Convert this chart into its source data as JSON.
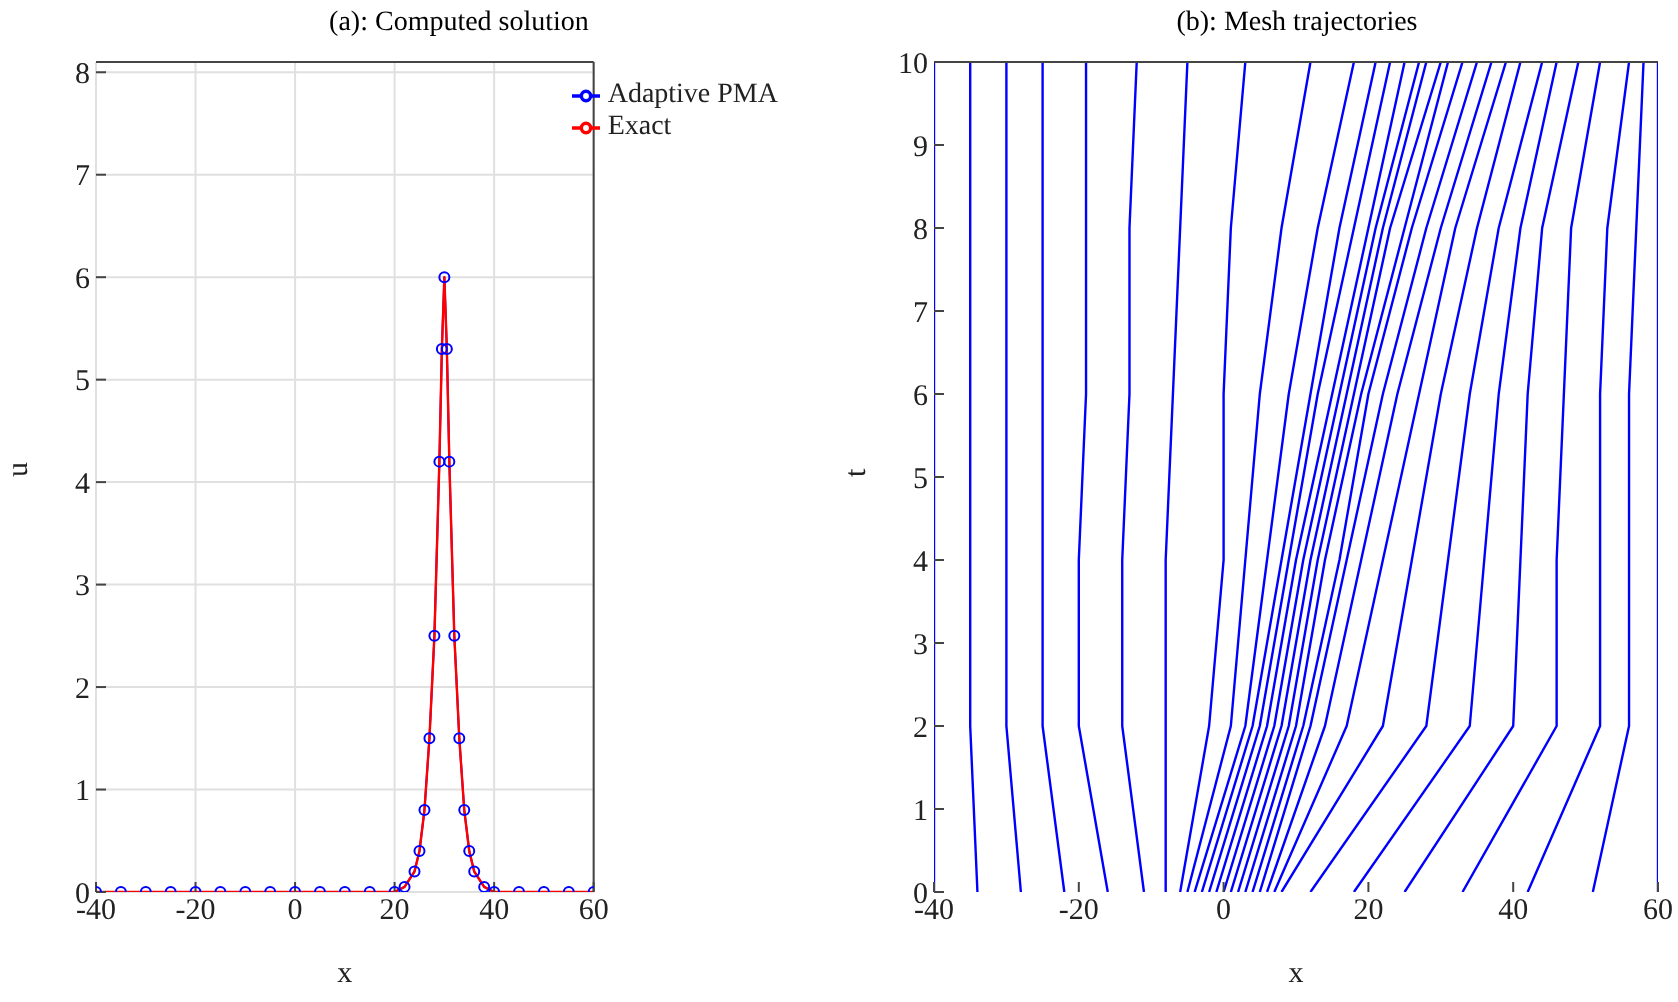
{
  "chart_data": [
    {
      "type": "line",
      "title": "(a): Computed solution",
      "xlabel": "x",
      "ylabel": "u",
      "xlim": [
        -40,
        60
      ],
      "xticks": [
        -40,
        -20,
        0,
        20,
        40,
        60
      ],
      "ylim": [
        0,
        8.1
      ],
      "yticks": [
        0,
        1,
        2,
        3,
        4,
        5,
        6,
        7,
        8
      ],
      "grid": true,
      "legend": "top right",
      "x": [
        -40,
        -35,
        -30,
        -25,
        -20,
        -15,
        -10,
        -5,
        0,
        5,
        10,
        15,
        20,
        22,
        24,
        25,
        26,
        27,
        28,
        29,
        29.5,
        30,
        30.5,
        31,
        32,
        33,
        34,
        35,
        36,
        38,
        40,
        45,
        50,
        55,
        60
      ],
      "series": [
        {
          "name": "Adaptive PMA",
          "color": "#0000ff",
          "marker": "circle",
          "values": [
            0,
            0,
            0,
            0,
            0,
            0,
            0,
            0,
            0,
            0,
            0,
            0,
            0,
            0.05,
            0.2,
            0.4,
            0.8,
            1.5,
            2.5,
            4.2,
            5.3,
            6,
            5.3,
            4.2,
            2.5,
            1.5,
            0.8,
            0.4,
            0.2,
            0.05,
            0,
            0,
            0,
            0,
            0
          ]
        },
        {
          "name": "Exact",
          "color": "#ff0000",
          "marker": "none",
          "values": [
            0,
            0,
            0,
            0,
            0,
            0,
            0,
            0,
            0,
            0,
            0,
            0,
            0,
            0.05,
            0.2,
            0.4,
            0.8,
            1.5,
            2.5,
            4.2,
            5.3,
            6,
            5.3,
            4.2,
            2.5,
            1.5,
            0.8,
            0.4,
            0.2,
            0.05,
            0,
            0,
            0,
            0,
            0
          ]
        }
      ]
    },
    {
      "type": "line",
      "title": "(b): Mesh trajectories",
      "xlabel": "x",
      "ylabel": "t",
      "xlim": [
        -40,
        60
      ],
      "xticks": [
        -40,
        -20,
        0,
        20,
        40,
        60
      ],
      "ylim": [
        0,
        10
      ],
      "yticks": [
        0,
        1,
        2,
        3,
        4,
        5,
        6,
        7,
        8,
        9,
        10
      ],
      "grid": false,
      "legend": false,
      "marker": "none",
      "series": [
        {
          "color": "#0000ff",
          "x": [
            -40,
            -40,
            -40,
            -40,
            -40,
            -40
          ],
          "values": [
            0,
            2,
            4,
            6,
            8,
            10
          ]
        },
        {
          "color": "#0000ff",
          "x": [
            -34,
            -35,
            -35,
            -35,
            -35,
            -35
          ],
          "values": [
            0,
            2,
            4,
            6,
            8,
            10
          ]
        },
        {
          "color": "#0000ff",
          "x": [
            -28,
            -30,
            -30,
            -30,
            -30,
            -30
          ],
          "values": [
            0,
            2,
            4,
            6,
            8,
            10
          ]
        },
        {
          "color": "#0000ff",
          "x": [
            -22,
            -25,
            -25,
            -25,
            -25,
            -25
          ],
          "values": [
            0,
            2,
            4,
            6,
            8,
            10
          ]
        },
        {
          "color": "#0000ff",
          "x": [
            -16,
            -20,
            -20,
            -19,
            -19,
            -19
          ],
          "values": [
            0,
            2,
            4,
            6,
            8,
            10
          ]
        },
        {
          "color": "#0000ff",
          "x": [
            -11,
            -14,
            -14,
            -13,
            -13,
            -12
          ],
          "values": [
            0,
            2,
            4,
            6,
            8,
            10
          ]
        },
        {
          "color": "#0000ff",
          "x": [
            -8,
            -8,
            -8,
            -7,
            -6,
            -5
          ],
          "values": [
            0,
            2,
            4,
            6,
            8,
            10
          ]
        },
        {
          "color": "#0000ff",
          "x": [
            -6,
            -2,
            0,
            0,
            1,
            3
          ],
          "values": [
            0,
            2,
            4,
            6,
            8,
            10
          ]
        },
        {
          "color": "#0000ff",
          "x": [
            -5,
            1,
            3,
            5,
            8,
            12
          ],
          "values": [
            0,
            2,
            4,
            6,
            8,
            10
          ]
        },
        {
          "color": "#0000ff",
          "x": [
            -4,
            3,
            6,
            9,
            13,
            18
          ],
          "values": [
            0,
            2,
            4,
            6,
            8,
            10
          ]
        },
        {
          "color": "#0000ff",
          "x": [
            -3,
            4,
            8,
            12,
            16,
            21
          ],
          "values": [
            0,
            2,
            4,
            6,
            8,
            10
          ]
        },
        {
          "color": "#0000ff",
          "x": [
            -2,
            5,
            9,
            13,
            18,
            23
          ],
          "values": [
            0,
            2,
            4,
            6,
            8,
            10
          ]
        },
        {
          "color": "#0000ff",
          "x": [
            -1,
            6,
            10,
            15,
            20,
            25
          ],
          "values": [
            0,
            2,
            4,
            6,
            8,
            10
          ]
        },
        {
          "color": "#0000ff",
          "x": [
            0,
            7,
            11,
            16,
            21,
            27
          ],
          "values": [
            0,
            2,
            4,
            6,
            8,
            10
          ]
        },
        {
          "color": "#0000ff",
          "x": [
            1,
            8,
            12,
            17,
            22,
            28
          ],
          "values": [
            0,
            2,
            4,
            6,
            8,
            10
          ]
        },
        {
          "color": "#0000ff",
          "x": [
            2,
            9,
            13,
            18,
            23,
            30
          ],
          "values": [
            0,
            2,
            4,
            6,
            8,
            10
          ]
        },
        {
          "color": "#0000ff",
          "x": [
            3,
            10,
            14,
            19,
            25,
            31
          ],
          "values": [
            0,
            2,
            4,
            6,
            8,
            10
          ]
        },
        {
          "color": "#0000ff",
          "x": [
            4,
            11,
            16,
            20,
            26,
            33
          ],
          "values": [
            0,
            2,
            4,
            6,
            8,
            10
          ]
        },
        {
          "color": "#0000ff",
          "x": [
            5,
            12,
            17,
            22,
            28,
            35
          ],
          "values": [
            0,
            2,
            4,
            6,
            8,
            10
          ]
        },
        {
          "color": "#0000ff",
          "x": [
            6,
            14,
            19,
            24,
            30,
            37
          ],
          "values": [
            0,
            2,
            4,
            6,
            8,
            10
          ]
        },
        {
          "color": "#0000ff",
          "x": [
            7,
            17,
            22,
            27,
            32,
            39
          ],
          "values": [
            0,
            2,
            4,
            6,
            8,
            10
          ]
        },
        {
          "color": "#0000ff",
          "x": [
            8,
            22,
            26,
            30,
            35,
            41
          ],
          "values": [
            0,
            2,
            4,
            6,
            8,
            10
          ]
        },
        {
          "color": "#0000ff",
          "x": [
            12,
            28,
            31,
            34,
            38,
            44
          ],
          "values": [
            0,
            2,
            4,
            6,
            8,
            10
          ]
        },
        {
          "color": "#0000ff",
          "x": [
            18,
            34,
            36,
            38,
            41,
            46
          ],
          "values": [
            0,
            2,
            4,
            6,
            8,
            10
          ]
        },
        {
          "color": "#0000ff",
          "x": [
            25,
            40,
            41,
            42,
            44,
            49
          ],
          "values": [
            0,
            2,
            4,
            6,
            8,
            10
          ]
        },
        {
          "color": "#0000ff",
          "x": [
            33,
            46,
            46,
            47,
            48,
            52
          ],
          "values": [
            0,
            2,
            4,
            6,
            8,
            10
          ]
        },
        {
          "color": "#0000ff",
          "x": [
            42,
            52,
            52,
            52,
            53,
            56
          ],
          "values": [
            0,
            2,
            4,
            6,
            8,
            10
          ]
        },
        {
          "color": "#0000ff",
          "x": [
            51,
            56,
            56,
            56,
            57,
            58
          ],
          "values": [
            0,
            2,
            4,
            6,
            8,
            10
          ]
        },
        {
          "color": "#0000ff",
          "x": [
            60,
            60,
            60,
            60,
            60,
            60
          ],
          "values": [
            0,
            2,
            4,
            6,
            8,
            10
          ]
        }
      ]
    }
  ]
}
